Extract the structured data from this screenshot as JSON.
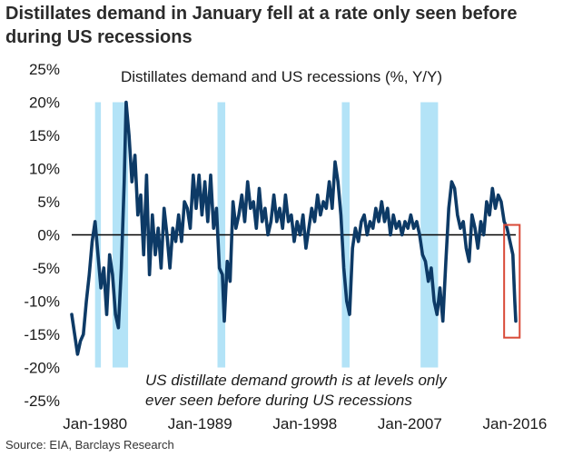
{
  "title": "Distillates demand in January fell at a rate only seen before during US recessions",
  "source": "Source: EIA, Barclays Research",
  "chart_data": {
    "type": "line",
    "title": "Distillates demand and US recessions (%, Y/Y)",
    "xlabel": "",
    "ylabel": "",
    "x_start": "1978-01",
    "x_end": "2016-02",
    "ylim": [
      -25,
      25
    ],
    "yticks": [
      25,
      20,
      15,
      10,
      5,
      0,
      -5,
      -10,
      -15,
      -20,
      -25
    ],
    "ytick_labels": [
      "25%",
      "20%",
      "15%",
      "10%",
      "5%",
      "0%",
      "-5%",
      "-10%",
      "-15%",
      "-20%",
      "-25%"
    ],
    "xticks": [
      "1980-01",
      "1989-01",
      "1998-01",
      "2007-01",
      "2016-01"
    ],
    "xtick_labels": [
      "Jan-1980",
      "Jan-1989",
      "Jan-1998",
      "Jan-2007",
      "Jan-2016"
    ],
    "grid": false,
    "colors": {
      "line": "#0d3a66",
      "recession": "#b3e3f7",
      "highlight_box": "#d94a38",
      "zero_line": "#000000"
    },
    "recessions": [
      {
        "start": "1980-01",
        "end": "1980-07"
      },
      {
        "start": "1981-07",
        "end": "1982-11"
      },
      {
        "start": "1990-07",
        "end": "1991-03"
      },
      {
        "start": "2001-03",
        "end": "2001-11"
      },
      {
        "start": "2007-12",
        "end": "2009-06"
      }
    ],
    "series": [
      {
        "name": "",
        "points": [
          [
            "1978-01",
            -12
          ],
          [
            "1978-04",
            -15
          ],
          [
            "1978-07",
            -18
          ],
          [
            "1978-10",
            -16
          ],
          [
            "1979-01",
            -15
          ],
          [
            "1979-04",
            -10
          ],
          [
            "1979-07",
            -6
          ],
          [
            "1979-10",
            -1
          ],
          [
            "1980-01",
            2
          ],
          [
            "1980-04",
            -3
          ],
          [
            "1980-07",
            -8
          ],
          [
            "1980-10",
            -5
          ],
          [
            "1981-01",
            -12
          ],
          [
            "1981-04",
            -3
          ],
          [
            "1981-07",
            -6
          ],
          [
            "1981-10",
            -12
          ],
          [
            "1982-01",
            -14
          ],
          [
            "1982-04",
            -5
          ],
          [
            "1982-07",
            8
          ],
          [
            "1982-09",
            20
          ],
          [
            "1982-12",
            15
          ],
          [
            "1983-03",
            8
          ],
          [
            "1983-06",
            12
          ],
          [
            "1983-09",
            3
          ],
          [
            "1983-12",
            6
          ],
          [
            "1984-03",
            -3
          ],
          [
            "1984-06",
            9
          ],
          [
            "1984-09",
            -6
          ],
          [
            "1984-12",
            3
          ],
          [
            "1985-03",
            -3
          ],
          [
            "1985-06",
            1
          ],
          [
            "1985-09",
            -5
          ],
          [
            "1985-12",
            4
          ],
          [
            "1986-03",
            0
          ],
          [
            "1986-06",
            -5
          ],
          [
            "1986-09",
            1
          ],
          [
            "1986-12",
            -1
          ],
          [
            "1987-03",
            3
          ],
          [
            "1987-06",
            -1
          ],
          [
            "1987-09",
            5
          ],
          [
            "1987-12",
            4
          ],
          [
            "1988-03",
            1
          ],
          [
            "1988-06",
            9
          ],
          [
            "1988-09",
            4
          ],
          [
            "1988-12",
            9
          ],
          [
            "1989-03",
            3
          ],
          [
            "1989-06",
            8
          ],
          [
            "1989-09",
            2
          ],
          [
            "1989-12",
            9
          ],
          [
            "1990-03",
            1
          ],
          [
            "1990-06",
            4
          ],
          [
            "1990-09",
            -5
          ],
          [
            "1990-12",
            -6
          ],
          [
            "1991-02",
            -13
          ],
          [
            "1991-05",
            -4
          ],
          [
            "1991-08",
            -7
          ],
          [
            "1991-11",
            5
          ],
          [
            "1992-02",
            1
          ],
          [
            "1992-05",
            3
          ],
          [
            "1992-08",
            6
          ],
          [
            "1992-11",
            2
          ],
          [
            "1993-02",
            8
          ],
          [
            "1993-05",
            4
          ],
          [
            "1993-08",
            5
          ],
          [
            "1993-11",
            1
          ],
          [
            "1994-02",
            7
          ],
          [
            "1994-05",
            2
          ],
          [
            "1994-08",
            4
          ],
          [
            "1994-11",
            0
          ],
          [
            "1995-02",
            2
          ],
          [
            "1995-05",
            6
          ],
          [
            "1995-08",
            2
          ],
          [
            "1995-11",
            4
          ],
          [
            "1996-02",
            1
          ],
          [
            "1996-05",
            6
          ],
          [
            "1996-08",
            2
          ],
          [
            "1996-11",
            3
          ],
          [
            "1997-02",
            -1
          ],
          [
            "1997-05",
            2
          ],
          [
            "1997-08",
            0
          ],
          [
            "1997-11",
            3
          ],
          [
            "1998-02",
            -2
          ],
          [
            "1998-05",
            1
          ],
          [
            "1998-08",
            4
          ],
          [
            "1998-11",
            2
          ],
          [
            "1999-02",
            6
          ],
          [
            "1999-05",
            3
          ],
          [
            "1999-08",
            5
          ],
          [
            "1999-11",
            4
          ],
          [
            "2000-02",
            8
          ],
          [
            "2000-05",
            4
          ],
          [
            "2000-08",
            11
          ],
          [
            "2000-11",
            8
          ],
          [
            "2001-02",
            3
          ],
          [
            "2001-05",
            -5
          ],
          [
            "2001-08",
            -10
          ],
          [
            "2001-11",
            -12
          ],
          [
            "2002-02",
            -2
          ],
          [
            "2002-05",
            1
          ],
          [
            "2002-08",
            -1
          ],
          [
            "2002-11",
            2
          ],
          [
            "2003-02",
            3
          ],
          [
            "2003-05",
            0
          ],
          [
            "2003-08",
            2
          ],
          [
            "2003-11",
            1
          ],
          [
            "2004-02",
            4
          ],
          [
            "2004-05",
            2
          ],
          [
            "2004-08",
            5
          ],
          [
            "2004-11",
            2
          ],
          [
            "2005-02",
            4
          ],
          [
            "2005-05",
            0
          ],
          [
            "2005-08",
            3
          ],
          [
            "2005-11",
            1
          ],
          [
            "2006-02",
            2
          ],
          [
            "2006-05",
            0
          ],
          [
            "2006-08",
            2
          ],
          [
            "2006-11",
            1
          ],
          [
            "2007-02",
            3
          ],
          [
            "2007-05",
            1
          ],
          [
            "2007-08",
            2
          ],
          [
            "2007-11",
            0
          ],
          [
            "2008-02",
            -3
          ],
          [
            "2008-05",
            -4
          ],
          [
            "2008-08",
            -7
          ],
          [
            "2008-11",
            -5
          ],
          [
            "2009-02",
            -10
          ],
          [
            "2009-05",
            -12
          ],
          [
            "2009-08",
            -8
          ],
          [
            "2009-11",
            -13
          ],
          [
            "2010-02",
            -4
          ],
          [
            "2010-05",
            4
          ],
          [
            "2010-08",
            8
          ],
          [
            "2010-11",
            7
          ],
          [
            "2011-02",
            3
          ],
          [
            "2011-05",
            1
          ],
          [
            "2011-08",
            2
          ],
          [
            "2011-11",
            -2
          ],
          [
            "2012-02",
            -4
          ],
          [
            "2012-05",
            3
          ],
          [
            "2012-08",
            1
          ],
          [
            "2012-11",
            -2
          ],
          [
            "2013-02",
            2
          ],
          [
            "2013-05",
            0
          ],
          [
            "2013-08",
            5
          ],
          [
            "2013-11",
            3
          ],
          [
            "2014-02",
            7
          ],
          [
            "2014-05",
            4
          ],
          [
            "2014-08",
            6
          ],
          [
            "2014-11",
            5
          ],
          [
            "2015-02",
            2
          ],
          [
            "2015-05",
            1
          ],
          [
            "2015-08",
            -1
          ],
          [
            "2015-11",
            -3
          ],
          [
            "2016-01",
            -10
          ],
          [
            "2016-02",
            -13
          ]
        ]
      }
    ],
    "annotation": {
      "lines": [
        "US distillate demand growth is at levels only",
        "ever seen before during US recessions"
      ]
    },
    "highlight": {
      "start": "2015-02",
      "end": "2016-06",
      "ymin": -15.5,
      "ymax": 1.5
    }
  }
}
